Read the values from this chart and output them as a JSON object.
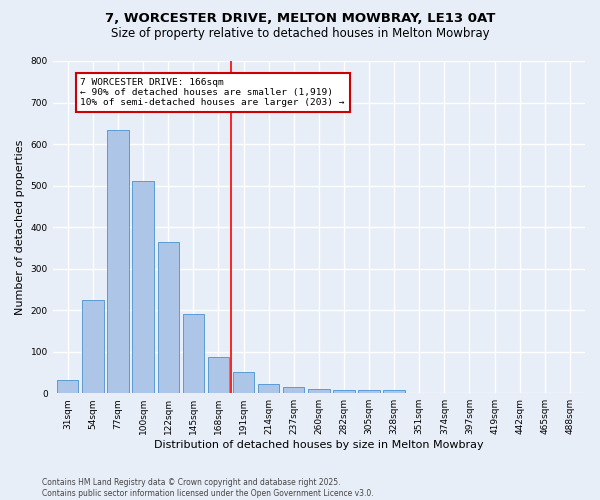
{
  "title": "7, WORCESTER DRIVE, MELTON MOWBRAY, LE13 0AT",
  "subtitle": "Size of property relative to detached houses in Melton Mowbray",
  "xlabel": "Distribution of detached houses by size in Melton Mowbray",
  "ylabel": "Number of detached properties",
  "categories": [
    "31sqm",
    "54sqm",
    "77sqm",
    "100sqm",
    "122sqm",
    "145sqm",
    "168sqm",
    "191sqm",
    "214sqm",
    "237sqm",
    "260sqm",
    "282sqm",
    "305sqm",
    "328sqm",
    "351sqm",
    "374sqm",
    "397sqm",
    "419sqm",
    "442sqm",
    "465sqm",
    "488sqm"
  ],
  "values": [
    33,
    224,
    635,
    510,
    365,
    190,
    88,
    52,
    22,
    14,
    10,
    7,
    8,
    7,
    0,
    0,
    0,
    0,
    0,
    0,
    0
  ],
  "bar_color": "#adc6e8",
  "bar_edge_color": "#5b9bd5",
  "vline_x": 6.5,
  "vline_label": "7 WORCESTER DRIVE: 166sqm",
  "annotation_line1": "← 90% of detached houses are smaller (1,919)",
  "annotation_line2": "10% of semi-detached houses are larger (203) →",
  "annotation_box_color": "#ffffff",
  "annotation_box_edge": "#cc0000",
  "footnote": "Contains HM Land Registry data © Crown copyright and database right 2025.\nContains public sector information licensed under the Open Government Licence v3.0.",
  "ylim": [
    0,
    800
  ],
  "background_color": "#e8eef7",
  "grid_color": "#ffffff",
  "title_fontsize": 9.5,
  "subtitle_fontsize": 8.5,
  "xlabel_fontsize": 8,
  "ylabel_fontsize": 8,
  "tick_fontsize": 6.5,
  "footnote_fontsize": 5.5,
  "annotation_fontsize": 6.8
}
